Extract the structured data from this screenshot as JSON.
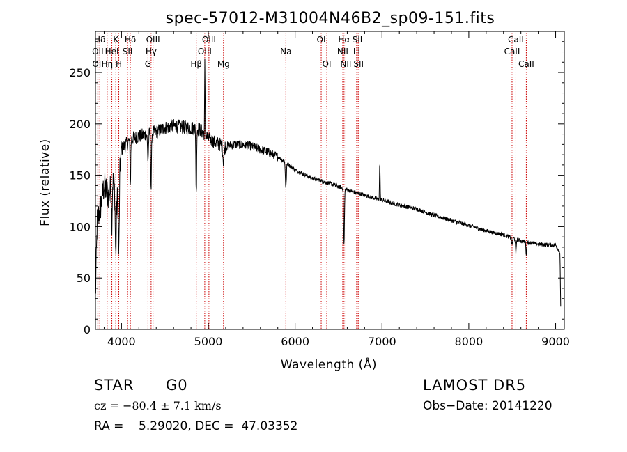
{
  "chart_data": {
    "type": "line",
    "title": "spec-57012-M31004N46B2_sp09-151.fits",
    "xlabel": "Wavelength (Å)",
    "ylabel": "Flux (relative)",
    "xlim": [
      3700,
      9100
    ],
    "ylim": [
      0,
      290
    ],
    "xticks": [
      4000,
      5000,
      6000,
      7000,
      8000,
      9000
    ],
    "yticks": [
      0,
      50,
      100,
      150,
      200,
      250
    ],
    "grid": false,
    "line_color": "#000000",
    "marker_color": "#cc0000",
    "line_markers": [
      {
        "label": "Hδ",
        "x": 3750,
        "row": 1
      },
      {
        "label": "OII",
        "x": 3727,
        "row": 2
      },
      {
        "label": "OII",
        "x": 3729,
        "row": 3
      },
      {
        "label": "Hη",
        "x": 3835,
        "row": 3
      },
      {
        "label": "K",
        "x": 3934,
        "row": 1
      },
      {
        "label": "HeI",
        "x": 3889,
        "row": 2
      },
      {
        "label": "H",
        "x": 3969,
        "row": 3
      },
      {
        "label": "Hδ",
        "x": 4102,
        "row": 1
      },
      {
        "label": "SII",
        "x": 4070,
        "row": 2
      },
      {
        "label": "OIII",
        "x": 4363,
        "row": 1
      },
      {
        "label": "Hγ",
        "x": 4341,
        "row": 2
      },
      {
        "label": "G",
        "x": 4305,
        "row": 3
      },
      {
        "label": "Hβ",
        "x": 4861,
        "row": 3
      },
      {
        "label": "OIII",
        "x": 5007,
        "row": 1
      },
      {
        "label": "OIII",
        "x": 4959,
        "row": 2
      },
      {
        "label": "Mg",
        "x": 5175,
        "row": 3
      },
      {
        "label": "Na",
        "x": 5893,
        "row": 2
      },
      {
        "label": "OI",
        "x": 6300,
        "row": 1
      },
      {
        "label": "OI",
        "x": 6364,
        "row": 3
      },
      {
        "label": "Hα",
        "x": 6563,
        "row": 1
      },
      {
        "label": "NII",
        "x": 6548,
        "row": 2
      },
      {
        "label": "NII",
        "x": 6584,
        "row": 3
      },
      {
        "label": "SII",
        "x": 6717,
        "row": 1
      },
      {
        "label": "Li",
        "x": 6708,
        "row": 2
      },
      {
        "label": "SII",
        "x": 6731,
        "row": 3
      },
      {
        "label": "CaII",
        "x": 8542,
        "row": 1
      },
      {
        "label": "CaII",
        "x": 8498,
        "row": 2
      },
      {
        "label": "CaII",
        "x": 8662,
        "row": 3
      }
    ],
    "continuum": [
      [
        3700,
        30
      ],
      [
        3720,
        105
      ],
      [
        3760,
        120
      ],
      [
        3800,
        140
      ],
      [
        3850,
        130
      ],
      [
        3900,
        145
      ],
      [
        3950,
        125
      ],
      [
        4000,
        175
      ],
      [
        4050,
        180
      ],
      [
        4100,
        185
      ],
      [
        4200,
        188
      ],
      [
        4300,
        190
      ],
      [
        4400,
        192
      ],
      [
        4500,
        196
      ],
      [
        4600,
        198
      ],
      [
        4700,
        197
      ],
      [
        4800,
        196
      ],
      [
        4900,
        195
      ],
      [
        5000,
        186
      ],
      [
        5100,
        181
      ],
      [
        5200,
        178
      ],
      [
        5300,
        180
      ],
      [
        5400,
        180
      ],
      [
        5500,
        178
      ],
      [
        5600,
        175
      ],
      [
        5700,
        172
      ],
      [
        5800,
        168
      ],
      [
        5900,
        162
      ],
      [
        6000,
        155
      ],
      [
        6200,
        147
      ],
      [
        6400,
        142
      ],
      [
        6500,
        139
      ],
      [
        6700,
        133
      ],
      [
        6900,
        128
      ],
      [
        7000,
        126
      ],
      [
        7200,
        121
      ],
      [
        7400,
        117
      ],
      [
        7600,
        111
      ],
      [
        7800,
        106
      ],
      [
        8000,
        101
      ],
      [
        8200,
        96
      ],
      [
        8400,
        92
      ],
      [
        8600,
        86
      ],
      [
        8800,
        83
      ],
      [
        9000,
        82
      ],
      [
        9050,
        75
      ],
      [
        9060,
        10
      ]
    ],
    "absorption_features": [
      {
        "x": 3934,
        "depth": 60,
        "width": 8
      },
      {
        "x": 3969,
        "depth": 70,
        "width": 8
      },
      {
        "x": 3889,
        "depth": 35,
        "width": 6
      },
      {
        "x": 4102,
        "depth": 45,
        "width": 6
      },
      {
        "x": 4305,
        "depth": 25,
        "width": 8
      },
      {
        "x": 4341,
        "depth": 55,
        "width": 6
      },
      {
        "x": 4861,
        "depth": 65,
        "width": 6
      },
      {
        "x": 5175,
        "depth": 15,
        "width": 10
      },
      {
        "x": 5893,
        "depth": 25,
        "width": 8
      },
      {
        "x": 6563,
        "depth": 55,
        "width": 7
      },
      {
        "x": 8498,
        "depth": 8,
        "width": 6
      },
      {
        "x": 8542,
        "depth": 15,
        "width": 6
      },
      {
        "x": 8662,
        "depth": 12,
        "width": 6
      }
    ],
    "emission_features": [
      {
        "x": 4960,
        "height": 70,
        "width": 4
      },
      {
        "x": 6975,
        "height": 36,
        "width": 5
      }
    ]
  },
  "footer": {
    "class_label": "STAR",
    "subclass_label": "G0",
    "survey_label": "LAMOST  DR5",
    "cz_text": "cz = −80.4 ± 7.1 km/s",
    "obs_date_text": "Obs−Date: 20141220",
    "coords_text": "RA =    5.29020, DEC =  47.03352"
  }
}
